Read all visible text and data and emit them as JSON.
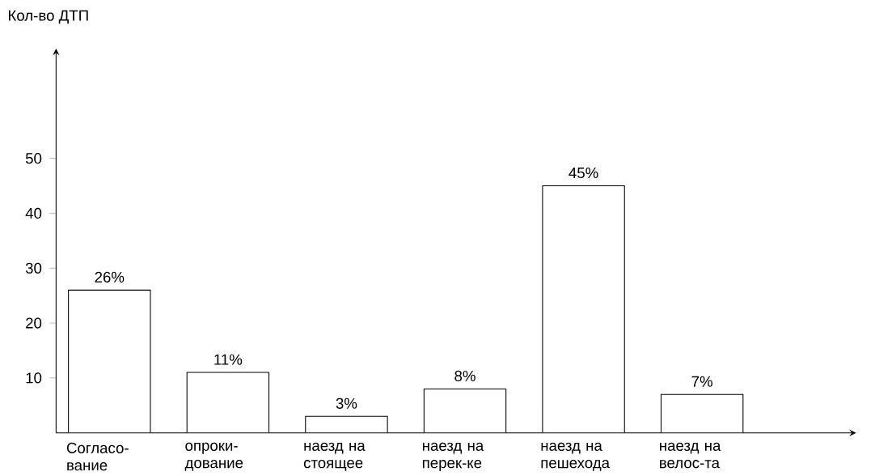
{
  "chart_data": {
    "type": "bar",
    "ylabel": "Кол-во ДТП",
    "categories": [
      "Согласо-вание",
      "опроки-дование",
      "наезд на стоящее",
      "наезд на перек-ке",
      "наезд на пешехода",
      "наезд на велос-та"
    ],
    "values": [
      26,
      11,
      3,
      8,
      45,
      7
    ],
    "value_labels": [
      "26%",
      "11%",
      "3%",
      "8%",
      "45%",
      "7%"
    ],
    "color": "#ffffff",
    "ylim": [
      0,
      70
    ],
    "yticks": [
      10,
      20,
      30,
      40,
      50
    ],
    "grid": false
  }
}
